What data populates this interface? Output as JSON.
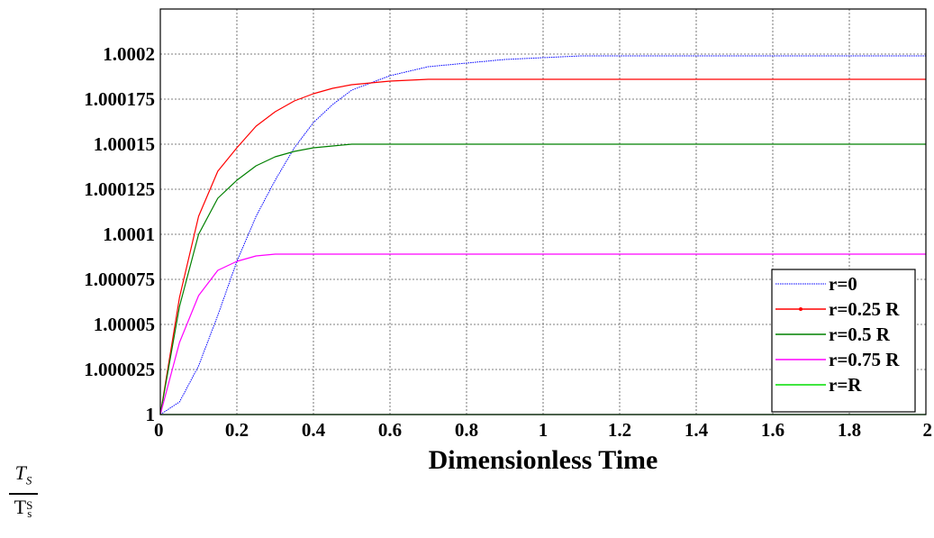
{
  "chart_data": {
    "type": "line",
    "title": "",
    "xlabel": "Dimensionless Time",
    "ylabel": {
      "numerator": "T",
      "numerator_sub": "S",
      "denominator": "T",
      "denominator_sup": "S",
      "denominator_sub": "s"
    },
    "xlim": [
      0,
      2
    ],
    "ylim": [
      1,
      1.000225
    ],
    "grid": true,
    "legend_position": "bottom-right",
    "x_ticks": [
      "0",
      "0.2",
      "0.4",
      "0.6",
      "0.8",
      "1",
      "1.2",
      "1.4",
      "1.6",
      "1.8",
      "2"
    ],
    "y_ticks": [
      "1",
      "1.000025",
      "1.00005",
      "1.000075",
      "1.0001",
      "1.000125",
      "1.00015",
      "1.000175",
      "1.0002"
    ],
    "x_tick_values": [
      0,
      0.2,
      0.4,
      0.6,
      0.8,
      1.0,
      1.2,
      1.4,
      1.6,
      1.8,
      2.0
    ],
    "y_tick_values": [
      1,
      1.000025,
      1.00005,
      1.000075,
      1.0001,
      1.000125,
      1.00015,
      1.000175,
      1.0002
    ],
    "x": [
      0,
      0.05,
      0.1,
      0.15,
      0.2,
      0.25,
      0.3,
      0.35,
      0.4,
      0.45,
      0.5,
      0.6,
      0.7,
      0.8,
      0.9,
      1.0,
      1.1,
      1.2,
      1.4,
      1.6,
      1.8,
      2.0
    ],
    "series": [
      {
        "name": "r=0",
        "color": "#0000ff",
        "style": "dotted-thin",
        "values": [
          1,
          1.000007,
          1.000027,
          1.000055,
          1.000085,
          1.00011,
          1.00013,
          1.000148,
          1.000162,
          1.000172,
          1.00018,
          1.000188,
          1.000193,
          1.000195,
          1.000197,
          1.000198,
          1.000199,
          1.000199,
          1.000199,
          1.000199,
          1.000199,
          1.000199
        ]
      },
      {
        "name": "r=0.25 R",
        "color": "#ff0000",
        "style": "solid",
        "values": [
          1,
          1.000065,
          1.00011,
          1.000135,
          1.000148,
          1.00016,
          1.000168,
          1.000174,
          1.000178,
          1.000181,
          1.000183,
          1.000185,
          1.000186,
          1.000186,
          1.000186,
          1.000186,
          1.000186,
          1.000186,
          1.000186,
          1.000186,
          1.000186,
          1.000186
        ]
      },
      {
        "name": "r=0.5 R",
        "color": "#008000",
        "style": "solid",
        "values": [
          1,
          1.00006,
          1.0001,
          1.00012,
          1.00013,
          1.000138,
          1.000143,
          1.000146,
          1.000148,
          1.000149,
          1.00015,
          1.00015,
          1.00015,
          1.00015,
          1.00015,
          1.00015,
          1.00015,
          1.00015,
          1.00015,
          1.00015,
          1.00015,
          1.00015
        ]
      },
      {
        "name": "r=0.75 R",
        "color": "#ff00ff",
        "style": "solid",
        "values": [
          1,
          1.00004,
          1.000066,
          1.00008,
          1.000085,
          1.000088,
          1.000089,
          1.000089,
          1.000089,
          1.000089,
          1.000089,
          1.000089,
          1.000089,
          1.000089,
          1.000089,
          1.000089,
          1.000089,
          1.000089,
          1.000089,
          1.000089,
          1.000089,
          1.000089
        ]
      },
      {
        "name": "r=R",
        "color": "#00dd00",
        "style": "solid",
        "values": [
          1,
          1,
          1,
          1,
          1,
          1,
          1,
          1,
          1,
          1,
          1,
          1,
          1,
          1,
          1,
          1,
          1,
          1,
          1,
          1,
          1,
          1
        ]
      }
    ]
  }
}
